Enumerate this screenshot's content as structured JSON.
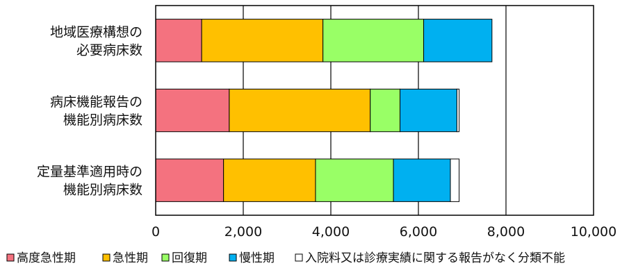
{
  "chart_data": {
    "type": "bar",
    "orientation": "horizontal",
    "stacked": true,
    "categories": [
      [
        "地域医療構想の",
        "必要病床数"
      ],
      [
        "病床機能報告の",
        "機能別病床数"
      ],
      [
        "定量基準適用時の",
        "機能別病床数"
      ]
    ],
    "series": [
      {
        "name": "高度急性期",
        "values": [
          1050,
          1680,
          1550
        ],
        "color": "#f4727f"
      },
      {
        "name": "急性期",
        "values": [
          2770,
          3220,
          2100
        ],
        "color": "#ffc000"
      },
      {
        "name": "回復期",
        "values": [
          2300,
          680,
          1780
        ],
        "color": "#99ff66"
      },
      {
        "name": "慢性期",
        "values": [
          1560,
          1300,
          1300
        ],
        "color": "#00b0f0"
      },
      {
        "name": "入院料又は診療実績に関する報告がなく分類不能",
        "values": [
          0,
          50,
          200
        ],
        "color": "#ffffff"
      }
    ],
    "xlim": [
      0,
      10000
    ],
    "xticks": [
      "0",
      "2,000",
      "4,000",
      "6,000",
      "8,000",
      "10,000"
    ],
    "xtick_values": [
      0,
      2000,
      4000,
      6000,
      8000,
      10000
    ],
    "grid": true,
    "legend_position": "bottom",
    "title": "",
    "xlabel": "",
    "ylabel": ""
  }
}
